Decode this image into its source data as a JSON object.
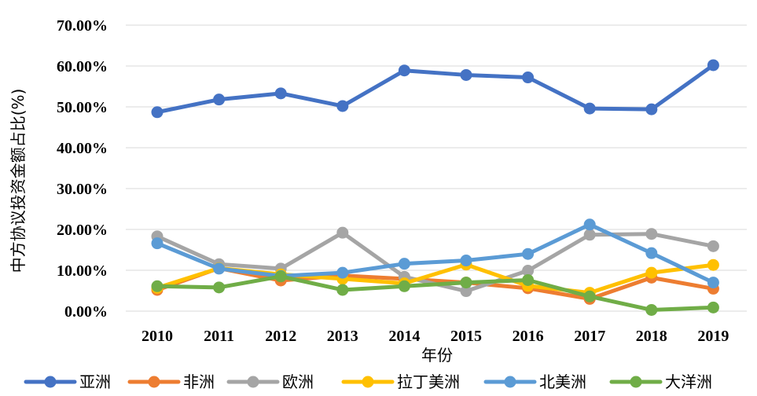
{
  "chart_data": {
    "type": "line",
    "title": "",
    "xlabel": "年份",
    "ylabel": "中方协议投资金额占比(%)",
    "x": [
      "2010",
      "2011",
      "2012",
      "2013",
      "2014",
      "2015",
      "2016",
      "2017",
      "2018",
      "2019"
    ],
    "y_ticks": [
      "0.00%",
      "10.00%",
      "20.00%",
      "30.00%",
      "40.00%",
      "50.00%",
      "60.00%",
      "70.00%"
    ],
    "ylim": [
      0,
      70
    ],
    "grid": true,
    "legend_position": "bottom",
    "series": [
      {
        "name": "亚洲",
        "color": "#4472c4",
        "values": [
          48.7,
          51.8,
          53.3,
          50.2,
          58.9,
          57.8,
          57.2,
          49.6,
          49.4,
          60.2
        ]
      },
      {
        "name": "非洲",
        "color": "#ed7d31",
        "values": [
          5.2,
          10.5,
          7.5,
          8.7,
          7.9,
          7.0,
          5.6,
          3.0,
          8.2,
          5.5
        ]
      },
      {
        "name": "欧洲",
        "color": "#a5a5a5",
        "values": [
          18.3,
          11.5,
          10.4,
          19.2,
          8.4,
          4.9,
          9.9,
          18.7,
          18.9,
          15.9
        ]
      },
      {
        "name": "拉丁美洲",
        "color": "#ffc000",
        "values": [
          5.7,
          10.5,
          9.0,
          7.9,
          6.8,
          11.4,
          6.2,
          4.5,
          9.4,
          11.3
        ]
      },
      {
        "name": "北美洲",
        "color": "#5b9bd5",
        "values": [
          16.6,
          10.4,
          8.6,
          9.4,
          11.6,
          12.4,
          14.0,
          21.2,
          14.2,
          7.0
        ]
      },
      {
        "name": "大洋洲",
        "color": "#70ad47",
        "values": [
          6.1,
          5.8,
          8.5,
          5.2,
          6.1,
          7.0,
          7.6,
          3.6,
          0.3,
          0.9
        ]
      }
    ]
  }
}
